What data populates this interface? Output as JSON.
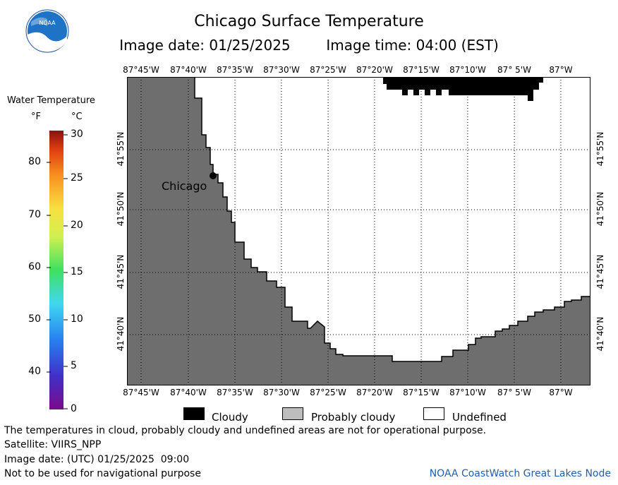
{
  "title": "Chicago Surface Temperature",
  "image_date_label": "Image date: 01/25/2025",
  "image_time_label": "Image time: 04:00 (EST)",
  "logo_text": "NOAA",
  "legend": {
    "title": "Water Temperature",
    "unit_f": "°F",
    "unit_c": "°C",
    "f_ticks": [
      "80",
      "70",
      "60",
      "50",
      "40"
    ],
    "c_ticks": [
      "30",
      "25",
      "20",
      "15",
      "10",
      "5",
      "0"
    ]
  },
  "map": {
    "lon_labels": [
      "87°45'W",
      "87°40'W",
      "87°35'W",
      "87°30'W",
      "87°25'W",
      "87°20'W",
      "87°15'W",
      "87°10'W",
      "87° 5'W",
      "87°W"
    ],
    "lat_labels": [
      "41°55'N",
      "41°50'N",
      "41°45'N",
      "41°40'N"
    ],
    "city_label": "Chicago",
    "land_color": "#6e6e6e",
    "cloud_color": "#000000"
  },
  "cloud_legend": {
    "cloudy": "Cloudy",
    "probably_cloudy": "Probably cloudy",
    "undefined": "Undefined"
  },
  "notes": {
    "disclaimer": "The temperatures in cloud, probably cloudy and undefined areas are not for operational purpose.",
    "satellite": "Satellite: VIIRS_NPP",
    "utc_date": "Image date: (UTC) 01/25/2025  09:00",
    "nav_warning": "Not to be used for navigational purpose",
    "credit": "NOAA CoastWatch Great Lakes Node"
  }
}
